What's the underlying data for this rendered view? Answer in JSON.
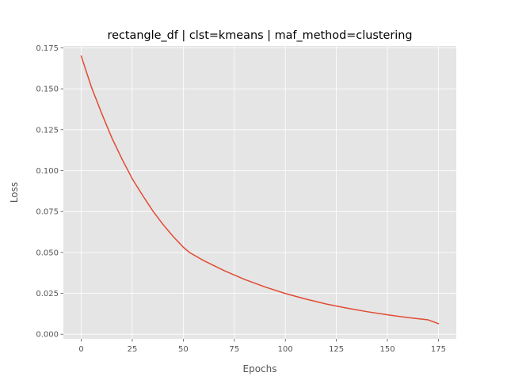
{
  "chart_data": {
    "type": "line",
    "title": "rectangle_df | clst=kmeans | maf_method=clustering",
    "xlabel": "Epochs",
    "ylabel": "Loss",
    "xlim": [
      -8.75,
      183.75
    ],
    "ylim": [
      -0.0028,
      0.1762
    ],
    "xticks": [
      0,
      25,
      50,
      75,
      100,
      125,
      150,
      175
    ],
    "yticks": [
      0.0,
      0.025,
      0.05,
      0.075,
      0.1,
      0.125,
      0.15,
      0.175
    ],
    "xtick_labels": [
      "0",
      "25",
      "50",
      "75",
      "100",
      "125",
      "150",
      "175"
    ],
    "ytick_labels": [
      "0.000",
      "0.025",
      "0.050",
      "0.075",
      "0.100",
      "0.125",
      "0.150",
      "0.175"
    ],
    "grid": true,
    "series": [
      {
        "color": "#e24a33",
        "x": [
          0,
          5,
          10,
          15,
          20,
          25,
          30,
          35,
          40,
          45,
          50,
          53,
          60,
          70,
          80,
          90,
          100,
          110,
          120,
          130,
          140,
          150,
          160,
          170,
          175
        ],
        "y": [
          0.17,
          0.151,
          0.135,
          0.12,
          0.107,
          0.095,
          0.085,
          0.0755,
          0.0672,
          0.0598,
          0.0532,
          0.05,
          0.045,
          0.0389,
          0.0335,
          0.0289,
          0.0249,
          0.0215,
          0.0185,
          0.016,
          0.0138,
          0.0119,
          0.0102,
          0.0088,
          0.0065
        ]
      }
    ]
  },
  "colors": {
    "plot_background": "#e5e5e5",
    "grid": "#ffffff",
    "line": "#e24a33"
  }
}
